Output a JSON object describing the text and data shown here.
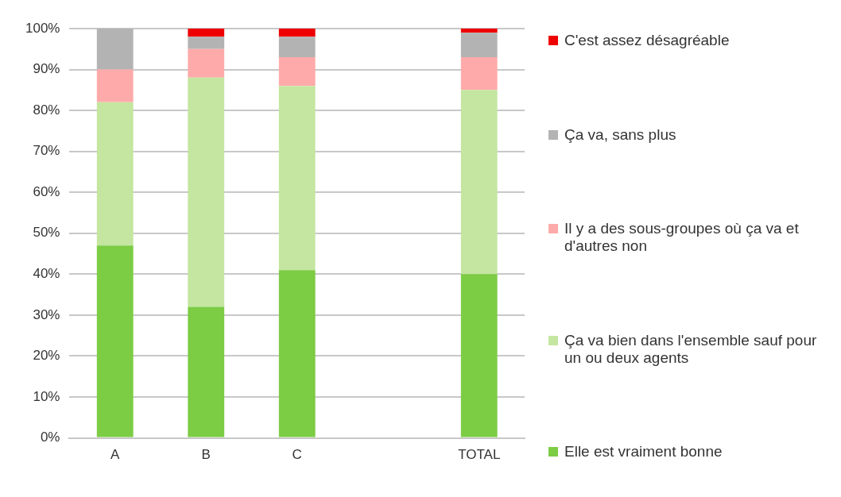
{
  "chart_data": {
    "type": "bar",
    "stacked": true,
    "categories": [
      "A",
      "B",
      "C",
      null,
      "TOTAL"
    ],
    "series": [
      {
        "name": "Elle est vraiment bonne",
        "color": "#7ccc44",
        "values": [
          47,
          32,
          41,
          null,
          40
        ]
      },
      {
        "name": "Ça va bien dans l'ensemble sauf pour un ou deux agents",
        "color": "#c4e6a0",
        "values": [
          35,
          56,
          45,
          null,
          45
        ]
      },
      {
        "name": "Il y a des sous-groupes où ça va et d'autres non",
        "color": "#ffaaaa",
        "values": [
          8,
          7,
          7,
          null,
          8
        ]
      },
      {
        "name": "Ça va, sans plus",
        "color": "#b3b3b3",
        "values": [
          10,
          3,
          5,
          null,
          6
        ]
      },
      {
        "name": "C'est assez désagréable",
        "color": "#ee0000",
        "values": [
          0,
          2,
          2,
          null,
          1
        ]
      }
    ],
    "ylim": [
      0,
      100
    ],
    "yticks": [
      {
        "value": 0,
        "label": "0%"
      },
      {
        "value": 10,
        "label": "10%"
      },
      {
        "value": 20,
        "label": "20%"
      },
      {
        "value": 30,
        "label": "30%"
      },
      {
        "value": 40,
        "label": "40%"
      },
      {
        "value": 50,
        "label": "50%"
      },
      {
        "value": 60,
        "label": "60%"
      },
      {
        "value": 70,
        "label": "70%"
      },
      {
        "value": 80,
        "label": "80%"
      },
      {
        "value": 90,
        "label": "90%"
      },
      {
        "value": 100,
        "label": "100%"
      }
    ],
    "grid": "y",
    "legend": "right"
  }
}
